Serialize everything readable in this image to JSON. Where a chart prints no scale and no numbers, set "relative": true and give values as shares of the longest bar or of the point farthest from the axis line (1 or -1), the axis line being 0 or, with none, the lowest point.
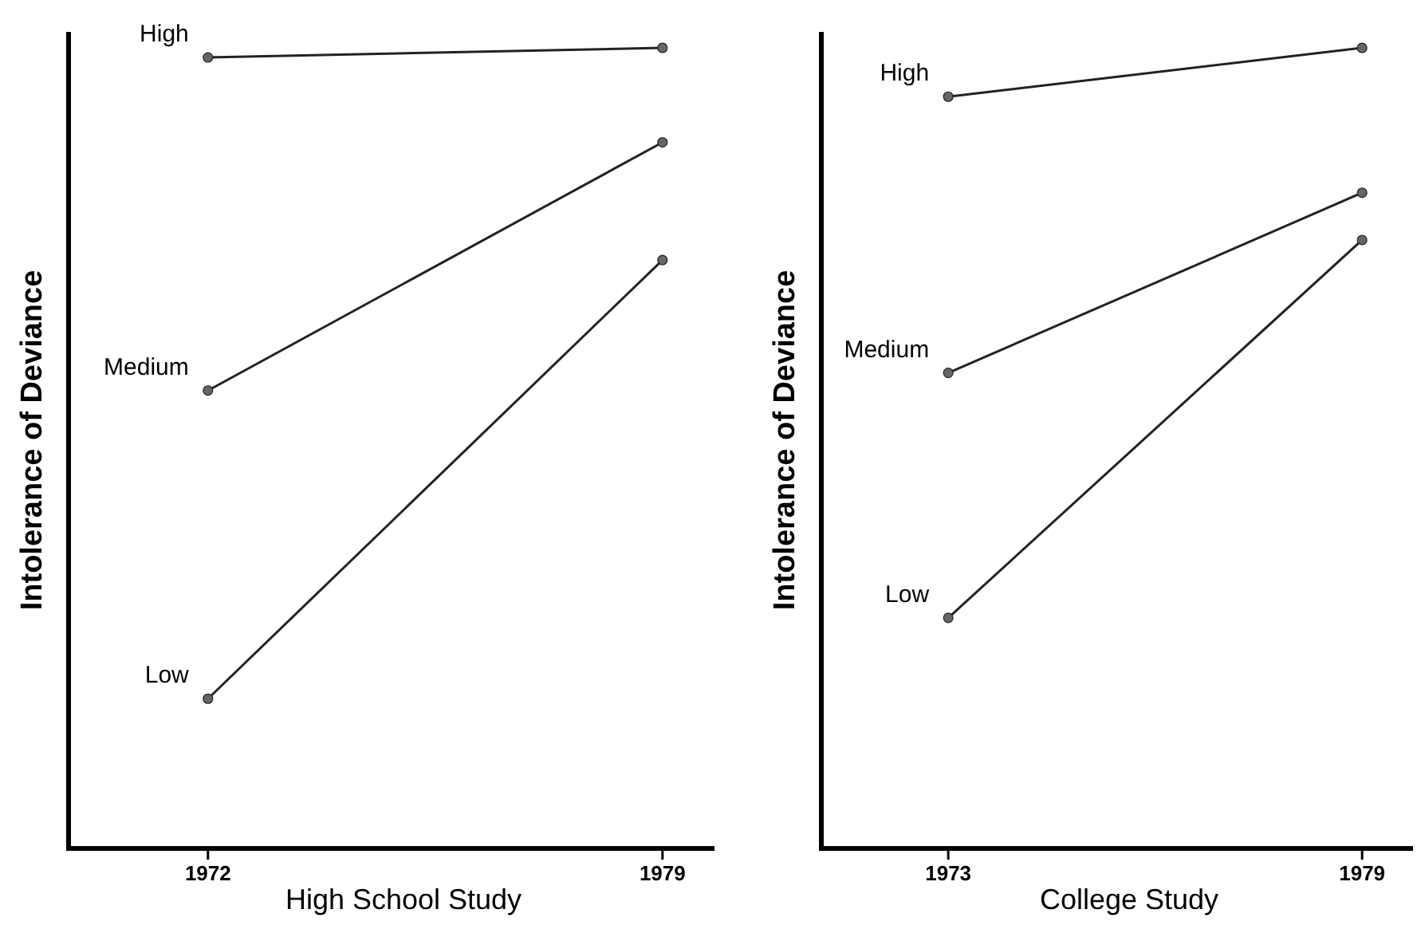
{
  "chart_data": [
    {
      "type": "line",
      "relative": true,
      "xlabel": "High School Study",
      "ylabel": "Intolerance of Deviance",
      "categories": [
        "1972",
        "1979"
      ],
      "marker": "circle",
      "series": [
        {
          "name": "High",
          "color": "#222222",
          "values": [
            0.988,
            1
          ]
        },
        {
          "name": "Medium",
          "color": "#222222",
          "values": [
            0.572,
            0.882
          ]
        },
        {
          "name": "Low",
          "color": "#222222",
          "values": [
            0.187,
            0.735
          ]
        }
      ]
    },
    {
      "type": "line",
      "relative": true,
      "xlabel": "College Study",
      "ylabel": "Intolerance of Deviance",
      "categories": [
        "1973",
        "1979"
      ],
      "marker": "circle",
      "series": [
        {
          "name": "High",
          "color": "#222222",
          "values": [
            0.939,
            1
          ]
        },
        {
          "name": "Medium",
          "color": "#222222",
          "values": [
            0.594,
            0.819
          ]
        },
        {
          "name": "Low",
          "color": "#222222",
          "values": [
            0.288,
            0.76
          ]
        }
      ]
    }
  ]
}
